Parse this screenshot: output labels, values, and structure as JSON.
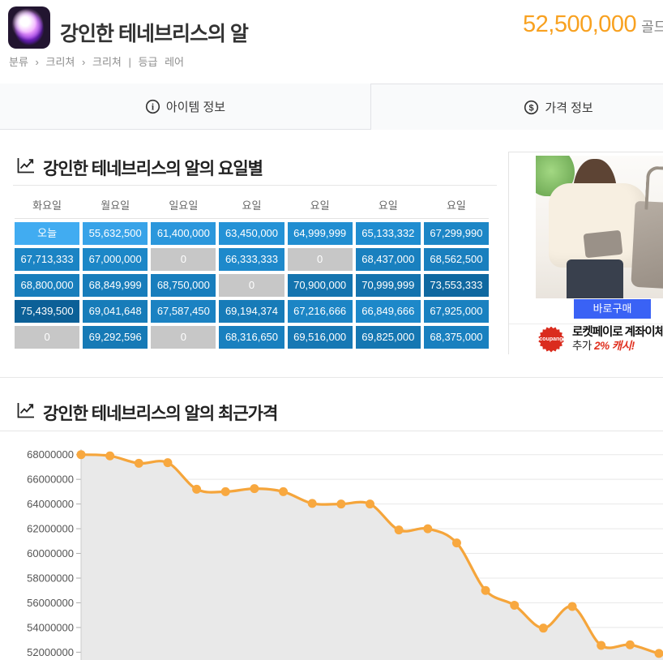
{
  "header": {
    "icon": "item-egg-icon",
    "title": "강인한 테네브리스의 알",
    "price_value": "52,500,000",
    "price_unit": "골드",
    "breadcrumb": {
      "root": "분류",
      "separator": "›",
      "path": [
        "크리쳐",
        "크리쳐"
      ],
      "divider": "|",
      "grade_label": "등급",
      "grade_value": "레어"
    }
  },
  "tabs": [
    {
      "label": "아이템 정보",
      "icon": "info-circle-icon",
      "active": false
    },
    {
      "label": "가격 정보",
      "icon": "dollar-circle-icon",
      "active": true
    }
  ],
  "weekday_section": {
    "title": "강인한 테네브리스의 알의 요일별",
    "columns": [
      "화요일",
      "월요일",
      "일요일",
      "요일",
      "요일",
      "요일",
      "요일"
    ],
    "rows": [
      [
        {
          "v": "오늘",
          "c": "#41acf1"
        },
        {
          "v": "55,632,500",
          "c": "#38a3e8"
        },
        {
          "v": "61,400,000",
          "c": "#2b97dc"
        },
        {
          "v": "63,450,000",
          "c": "#2492d6"
        },
        {
          "v": "64,999,999",
          "c": "#218ed1"
        },
        {
          "v": "65,133,332",
          "c": "#208dd0"
        },
        {
          "v": "67,299,990",
          "c": "#1c86c6"
        }
      ],
      [
        {
          "v": "67,713,333",
          "c": "#1b84c4"
        },
        {
          "v": "67,000,000",
          "c": "#1c87c7"
        },
        {
          "v": "0",
          "c": "#c7c7c7"
        },
        {
          "v": "66,333,333",
          "c": "#1e89cb"
        },
        {
          "v": "0",
          "c": "#c7c7c7"
        },
        {
          "v": "68,437,000",
          "c": "#1980bf"
        },
        {
          "v": "68,562,500",
          "c": "#197fbe"
        }
      ],
      [
        {
          "v": "68,800,000",
          "c": "#187ebc"
        },
        {
          "v": "68,849,999",
          "c": "#187dbb"
        },
        {
          "v": "68,750,000",
          "c": "#187ebd"
        },
        {
          "v": "0",
          "c": "#c7c7c7"
        },
        {
          "v": "70,900,000",
          "c": "#1474af"
        },
        {
          "v": "70,999,999",
          "c": "#1473ae"
        },
        {
          "v": "73,553,333",
          "c": "#0f68a0"
        }
      ],
      [
        {
          "v": "75,439,500",
          "c": "#0c6097"
        },
        {
          "v": "69,041,648",
          "c": "#177cb9"
        },
        {
          "v": "67,587,450",
          "c": "#1b82c2"
        },
        {
          "v": "69,194,374",
          "c": "#177bb8"
        },
        {
          "v": "67,216,666",
          "c": "#1c85c5"
        },
        {
          "v": "66,849,666",
          "c": "#1d88c9"
        },
        {
          "v": "67,925,000",
          "c": "#1a81c0"
        }
      ],
      [
        {
          "v": "0",
          "c": "#c7c7c7"
        },
        {
          "v": "69,292,596",
          "c": "#167ab6"
        },
        {
          "v": "0",
          "c": "#c7c7c7"
        },
        {
          "v": "68,316,650",
          "c": "#1980bf"
        },
        {
          "v": "69,516,000",
          "c": "#1678b4"
        },
        {
          "v": "69,825,000",
          "c": "#1577b2"
        },
        {
          "v": "68,375,000",
          "c": "#1980bf"
        }
      ]
    ]
  },
  "ad": {
    "buy_button_label": "바로구매",
    "logo_text": "coupang",
    "promo_line1": "로켓페이로 계좌이체",
    "promo_line2_prefix": "추가 ",
    "promo_line2_highlight": "2% 캐시!",
    "colors": {
      "buy_button": "#3a62f5",
      "logo_red": "#da2c1e",
      "highlight_red": "#e0301f"
    }
  },
  "recent_section": {
    "title": "강인한 테네브리스의 알의 최근가격"
  },
  "chart_data": {
    "type": "area",
    "title": "강인한 테네브리스의 알의 최근가격",
    "values": [
      68000000,
      67900000,
      67300000,
      67350000,
      65200000,
      65000000,
      65250000,
      65000000,
      64050000,
      64000000,
      64000000,
      61900000,
      62000000,
      60850000,
      57000000,
      55800000,
      53950000,
      55700000,
      52550000,
      52600000,
      51900000
    ],
    "ylim": [
      52000000,
      68000000
    ],
    "ytick_step": 2000000,
    "ytick_labels": [
      "68000000",
      "66000000",
      "64000000",
      "62000000",
      "60000000",
      "58000000",
      "56000000",
      "54000000",
      "52000000"
    ],
    "xlabel": "",
    "ylabel": "",
    "grid": true,
    "legend": false,
    "line_color": "#f5a53b",
    "marker_color": "#f8a83f",
    "fill_color": "#e9e9e9",
    "axis_color": "#cccccc",
    "tick_label_color": "#555555"
  }
}
